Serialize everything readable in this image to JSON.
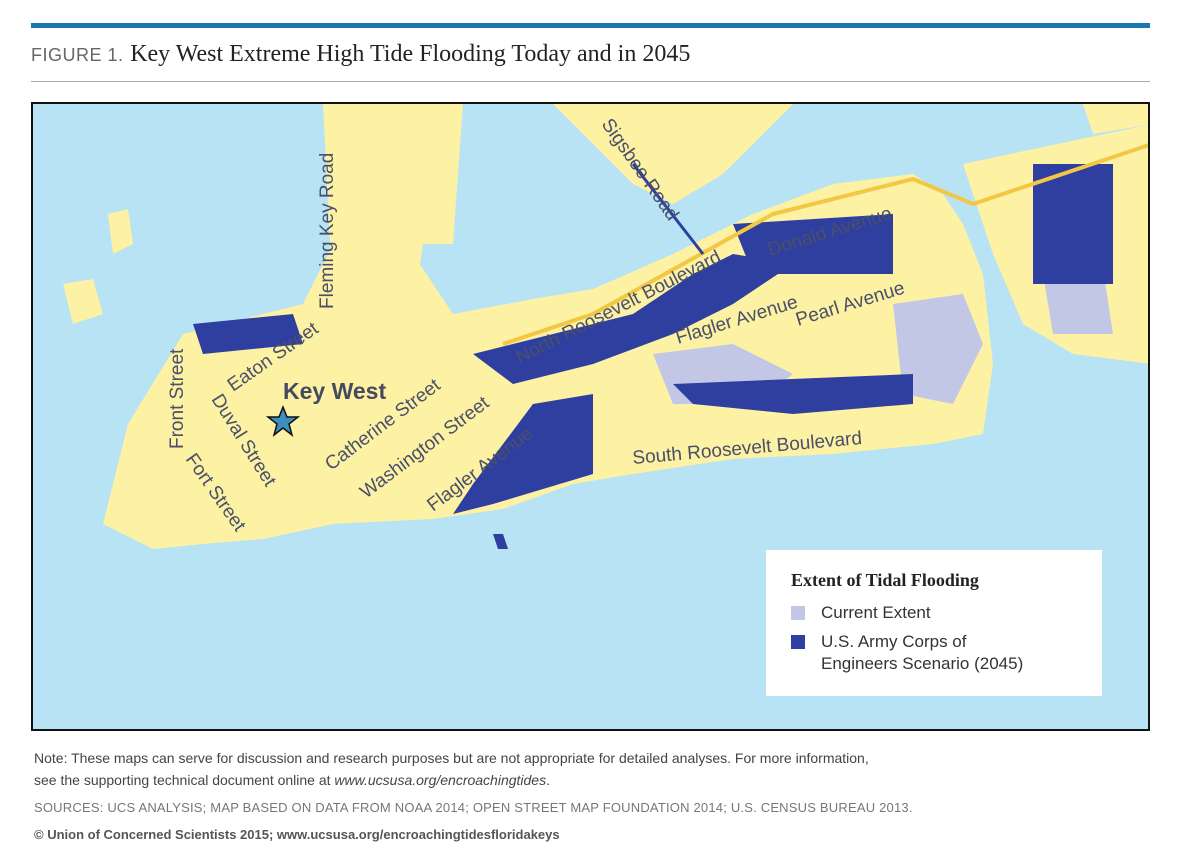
{
  "header": {
    "figure_label": "FIGURE 1.",
    "title": "Key West Extreme High Tide Flooding Today and in 2045"
  },
  "map": {
    "place_label": "Key West",
    "streets": [
      "Fleming Key Road",
      "Sigsbee Road",
      "Front Street",
      "Eaton Street",
      "Duval Street",
      "Fort Street",
      "Catherine Street",
      "Washington Street",
      "Flagler Avenue",
      "North Roosevelt Boulevard",
      "Donald Avenue",
      "Flagler Avenue",
      "Pearl Avenue",
      "South Roosevelt Boulevard"
    ],
    "colors": {
      "water": "#b7e3f4",
      "land": "#fdf1a4",
      "current_extent": "#c2c7e6",
      "scenario_2045": "#2f3f9f",
      "highway": "#f2c744"
    },
    "marker_icon": "star-icon"
  },
  "legend": {
    "title": "Extent of Tidal Flooding",
    "items": [
      {
        "label": "Current Extent",
        "color": "#c2c7e6"
      },
      {
        "label": "U.S. Army Corps of Engineers Scenario (2045)",
        "label_line1": "U.S. Army Corps of",
        "label_line2": "Engineers Scenario (2045)",
        "color": "#2f3f9f"
      }
    ]
  },
  "footer": {
    "note_line1": "Note: These maps can serve for discussion and research purposes but are not appropriate for detailed analyses. For more information,",
    "note_line2_prefix": "see the supporting technical document online at ",
    "note_link": "www.ucsusa.org/encroachingtides",
    "sources": "SOURCES: UCS ANALYSIS; MAP BASED ON DATA FROM NOAA 2014; OPEN STREET MAP FOUNDATION 2014; U.S. CENSUS BUREAU 2013.",
    "copyright": "© Union of Concerned Scientists 2015; www.ucsusa.org/encroachingtidesfloridakeys"
  }
}
